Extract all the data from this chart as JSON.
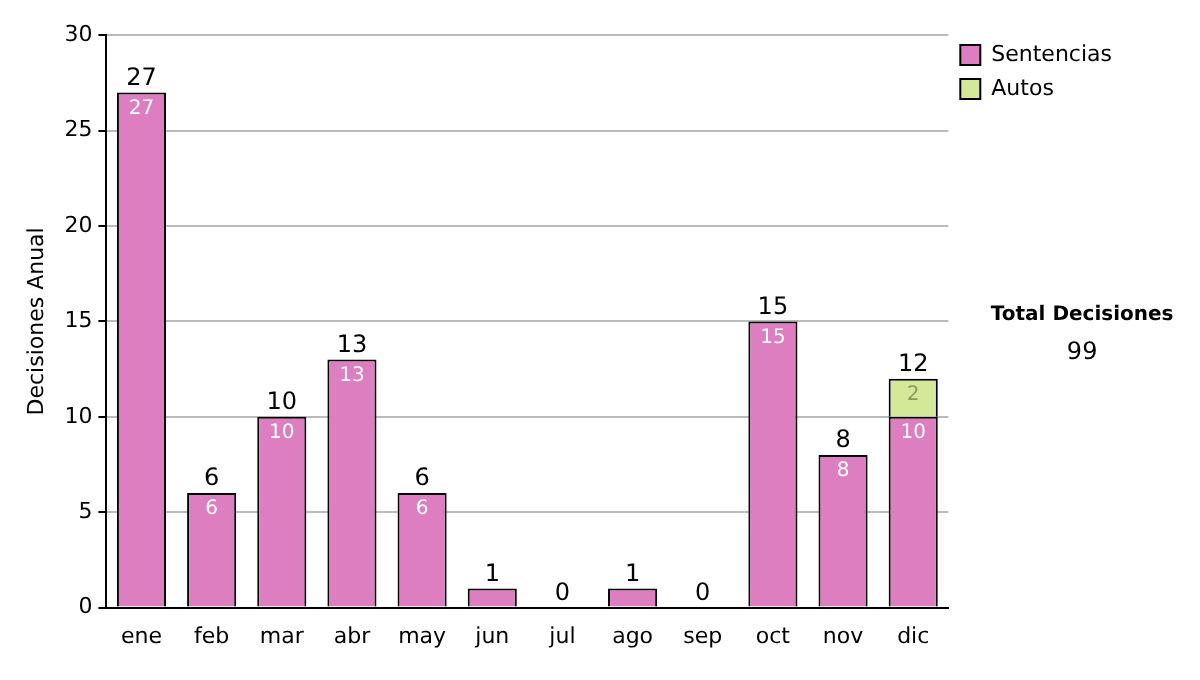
{
  "chart_data": {
    "type": "bar",
    "ylabel": "Decisiones Anual",
    "categories": [
      "ene",
      "feb",
      "mar",
      "abr",
      "may",
      "jun",
      "jul",
      "ago",
      "sep",
      "oct",
      "nov",
      "dic"
    ],
    "series": [
      {
        "name": "Sentencias",
        "color": "#dd7ec0",
        "values": [
          27,
          6,
          10,
          13,
          6,
          1,
          0,
          1,
          0,
          15,
          8,
          10
        ],
        "value_labels": [
          "27",
          "6",
          "10",
          "13",
          "6",
          null,
          null,
          null,
          null,
          "15",
          "8",
          "10"
        ]
      },
      {
        "name": "Autos",
        "color": "#d4e89a",
        "values": [
          0,
          0,
          0,
          0,
          0,
          0,
          0,
          0,
          0,
          0,
          0,
          2
        ],
        "value_labels": [
          null,
          null,
          null,
          null,
          null,
          null,
          null,
          null,
          null,
          null,
          null,
          "2"
        ]
      }
    ],
    "stacked": true,
    "totals": [
      "27",
      "6",
      "10",
      "13",
      "6",
      "1",
      "0",
      "1",
      "0",
      "15",
      "8",
      "12"
    ],
    "ylim": [
      0,
      30
    ],
    "yticks": [
      0,
      5,
      10,
      15,
      20,
      25,
      30
    ],
    "grid": "y",
    "legend": "right",
    "annotations": [
      "Total Decisiones",
      "99"
    ]
  }
}
